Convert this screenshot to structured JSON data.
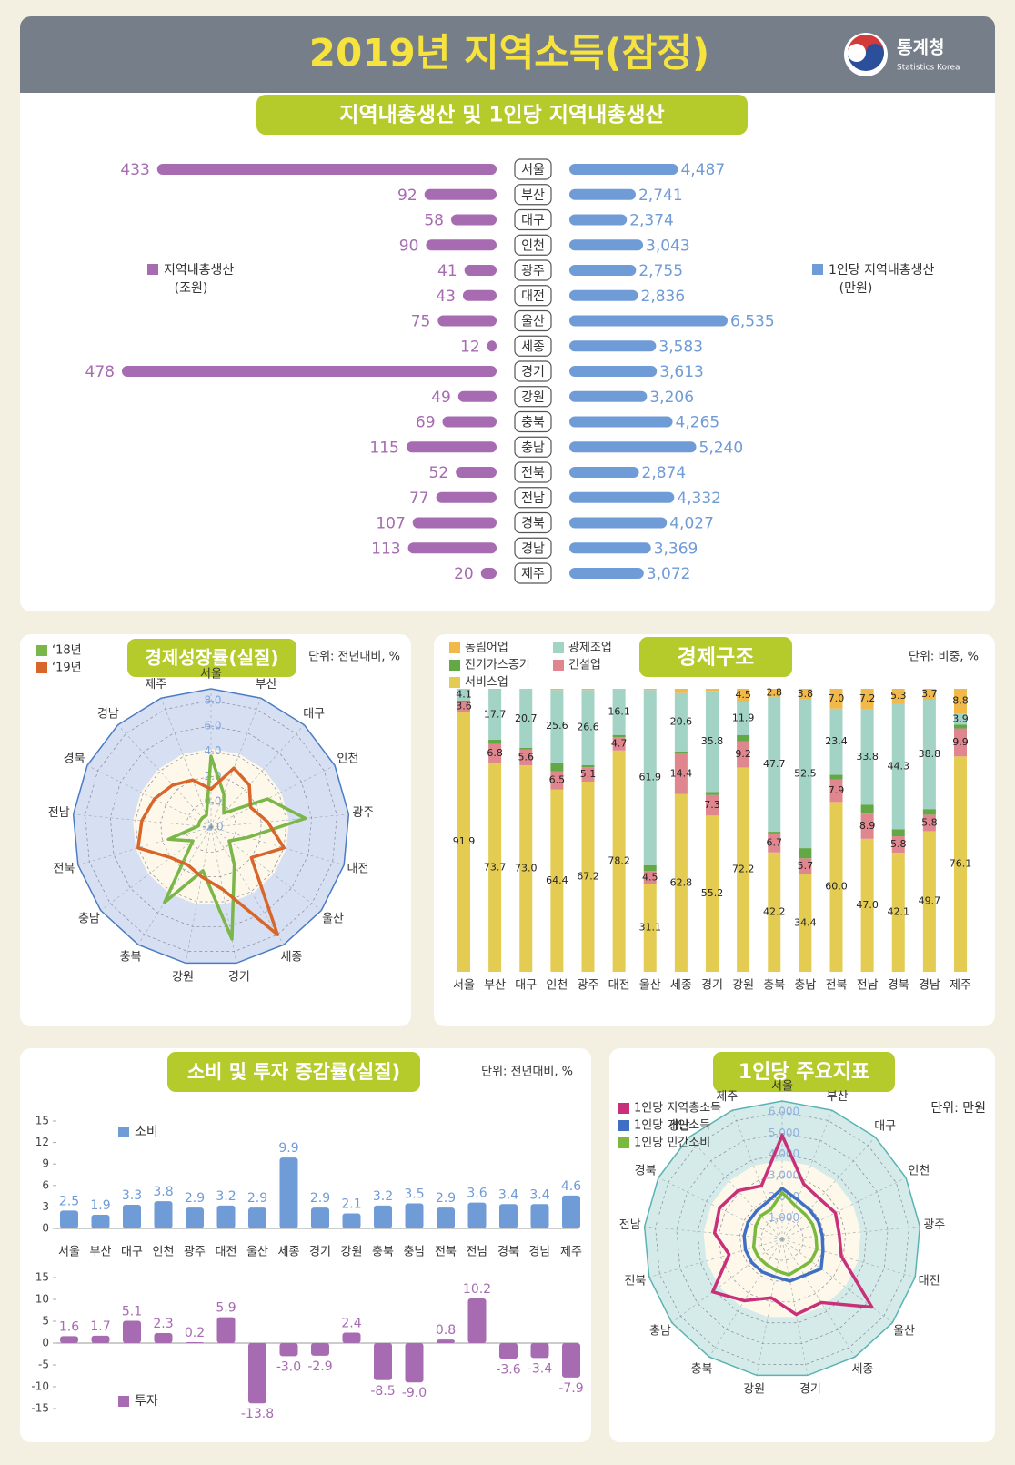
{
  "header": {
    "title": "2019년 지역소득(잠정)",
    "logo": "통계청",
    "logo_sub": "Statistics Korea"
  },
  "chart_data": [
    {
      "type": "butterfly_bar",
      "title": "지역내총생산 및 1인당 지역내총생산",
      "categories": [
        "서울",
        "부산",
        "대구",
        "인천",
        "광주",
        "대전",
        "울산",
        "세종",
        "경기",
        "강원",
        "충북",
        "충남",
        "전북",
        "전남",
        "경북",
        "경남",
        "제주"
      ],
      "series": [
        {
          "name": "지역내총생산",
          "unit": "(조원)",
          "color": "#a66bb1",
          "values": [
            433,
            92,
            58,
            90,
            41,
            43,
            75,
            12,
            478,
            49,
            69,
            115,
            52,
            77,
            107,
            113,
            20
          ]
        },
        {
          "name": "1인당 지역내총생산",
          "unit": "(만원)",
          "color": "#6f9bd6",
          "values": [
            4487,
            2741,
            2374,
            3043,
            2755,
            2836,
            6535,
            3583,
            3613,
            3206,
            4265,
            5240,
            2874,
            4332,
            4027,
            3369,
            3072
          ],
          "value_labels": [
            "4,487",
            "2,741",
            "2,374",
            "3,043",
            "2,755",
            "2,836",
            "6,535",
            "3,583",
            "3,613",
            "3,206",
            "4,265",
            "5,240",
            "2,874",
            "4,332",
            "4,027",
            "3,369",
            "3,072"
          ]
        }
      ]
    },
    {
      "type": "radar",
      "title": "경제성장률(실질)",
      "unit": "단위: 전년대비, %",
      "categories": [
        "서울",
        "부산",
        "대구",
        "인천",
        "광주",
        "대전",
        "울산",
        "세종",
        "경기",
        "강원",
        "충북",
        "충남",
        "전북",
        "전남",
        "경북",
        "경남",
        "제주"
      ],
      "rlim": [
        -2,
        8
      ],
      "rticks": [
        {
          "value": -2,
          "label": "-2.0"
        },
        {
          "value": 0,
          "label": "0.0"
        },
        {
          "value": 2,
          "label": "2.0"
        },
        {
          "value": 4,
          "label": "4.0"
        },
        {
          "value": 6,
          "label": "6.0"
        },
        {
          "value": 8,
          "label": "8.0"
        }
      ],
      "legend": "top-left",
      "series": [
        {
          "name": "‘18년",
          "color": "#7ab648",
          "values": [
            3.6,
            0.8,
            -0.5,
            3.0,
            5.5,
            1.0,
            -0.2,
            1.5,
            7.0,
            1.5,
            5.0,
            -0.2,
            1.5,
            -1.0,
            -1.0,
            -1.0,
            -1.0
          ]
        },
        {
          "name": "‘19년",
          "color": "#d8662a",
          "values": [
            1.0,
            3.0,
            2.5,
            1.5,
            2.5,
            4.0,
            2.0,
            8.0,
            3.0,
            2.0,
            1.5,
            2.0,
            4.0,
            3.5,
            3.0,
            2.5,
            2.0
          ]
        }
      ]
    },
    {
      "type": "stacked_bar",
      "title": "경제구조",
      "unit": "단위: 비중, %",
      "categories": [
        "서울",
        "부산",
        "대구",
        "인천",
        "광주",
        "대전",
        "울산",
        "세종",
        "경기",
        "강원",
        "충북",
        "충남",
        "전북",
        "전남",
        "경북",
        "경남",
        "제주"
      ],
      "ylim": [
        0,
        100
      ],
      "series": [
        {
          "name": "농림어업",
          "color": "#f0b94a",
          "values": [
            0.0,
            0.3,
            0.2,
            0.4,
            0.4,
            0.2,
            0.4,
            1.5,
            0.7,
            4.5,
            2.8,
            3.8,
            7.0,
            7.2,
            5.3,
            3.7,
            8.8
          ],
          "value_labels": [
            null,
            null,
            null,
            null,
            null,
            null,
            null,
            null,
            null,
            "4.5",
            "2.8",
            "3.8",
            "7.0",
            "7.2",
            "5.3",
            "3.7",
            "8.8"
          ]
        },
        {
          "name": "광제조업",
          "color": "#a3d3c5",
          "values": [
            4.1,
            17.7,
            20.7,
            25.6,
            26.6,
            16.1,
            61.9,
            20.6,
            35.8,
            11.9,
            47.7,
            52.5,
            23.4,
            33.8,
            44.3,
            38.8,
            3.9
          ],
          "value_labels": [
            "4.1",
            "17.7",
            "20.7",
            "25.6",
            "26.6",
            "16.1",
            "61.9",
            "20.6",
            "35.8",
            "11.9",
            "47.7",
            "52.5",
            "23.4",
            "33.8",
            "44.3",
            "38.8",
            "3.9"
          ]
        },
        {
          "name": "전기가스증기",
          "color": "#62a845",
          "values": [
            0.4,
            1.5,
            0.5,
            3.1,
            0.7,
            0.8,
            2.1,
            0.7,
            1.0,
            2.2,
            0.6,
            3.6,
            1.7,
            3.1,
            2.5,
            2.0,
            1.3
          ]
        },
        {
          "name": "건설업",
          "color": "#e0868f",
          "values": [
            3.6,
            6.8,
            5.6,
            6.5,
            5.1,
            4.7,
            4.5,
            14.4,
            7.3,
            9.2,
            6.7,
            5.7,
            7.9,
            8.9,
            5.8,
            5.8,
            9.9
          ],
          "value_labels": [
            "3.6",
            "6.8",
            "5.6",
            "6.5",
            "5.1",
            "4.7",
            "4.5",
            "14.4",
            "7.3",
            "9.2",
            "6.7",
            "5.7",
            "7.9",
            "8.9",
            "5.8",
            "5.8",
            "9.9"
          ]
        },
        {
          "name": "서비스업",
          "color": "#e4cc52",
          "values": [
            91.9,
            73.7,
            73.0,
            64.4,
            67.2,
            78.2,
            31.1,
            62.8,
            55.2,
            72.2,
            42.2,
            34.4,
            60.0,
            47.0,
            42.1,
            49.7,
            76.1
          ],
          "value_labels": [
            "91.9",
            "73.7",
            "73.0",
            "64.4",
            "67.2",
            "78.2",
            "31.1",
            "62.8",
            "55.2",
            "72.2",
            "42.2",
            "34.4",
            "60.0",
            "47.0",
            "42.1",
            "49.7",
            "76.1"
          ]
        }
      ]
    },
    {
      "type": "bar_panels",
      "title": "소비 및 투자 증감률(실질)",
      "unit": "단위: 전년대비, %",
      "categories": [
        "서울",
        "부산",
        "대구",
        "인천",
        "광주",
        "대전",
        "울산",
        "세종",
        "경기",
        "강원",
        "충북",
        "충남",
        "전북",
        "전남",
        "경북",
        "경남",
        "제주"
      ],
      "series": [
        {
          "name": "소비",
          "color": "#6f9bd6",
          "ylim": [
            0,
            15
          ],
          "yticks": [
            0,
            3,
            6,
            9,
            12,
            15
          ],
          "values": [
            2.5,
            1.9,
            3.3,
            3.8,
            2.9,
            3.2,
            2.9,
            9.9,
            2.9,
            2.1,
            3.2,
            3.5,
            2.9,
            3.6,
            3.4,
            3.4,
            4.6
          ]
        },
        {
          "name": "투자",
          "color": "#a66bb1",
          "ylim": [
            -15,
            15
          ],
          "yticks": [
            -15,
            -10,
            -5,
            0,
            5,
            10,
            15
          ],
          "values": [
            1.6,
            1.7,
            5.1,
            2.3,
            0.2,
            5.9,
            -13.8,
            -3.0,
            -2.9,
            2.4,
            -8.5,
            -9.0,
            0.8,
            10.2,
            -3.6,
            -3.4,
            -7.9
          ],
          "value_labels": [
            "1.6",
            "1.7",
            "5.1",
            "2.3",
            "0.2",
            "5.9",
            "-13.8",
            "-3.0",
            "-2.9",
            "2.4",
            "-8.5",
            "-9.0",
            "0.8",
            "10.2",
            "-3.6",
            "-3.4",
            "-7.9"
          ]
        }
      ]
    },
    {
      "type": "radar",
      "title": "1인당 주요지표",
      "unit": "단위: 만원",
      "categories": [
        "서울",
        "부산",
        "대구",
        "인천",
        "광주",
        "대전",
        "울산",
        "세종",
        "경기",
        "강원",
        "충북",
        "충남",
        "전북",
        "전남",
        "경북",
        "경남",
        "제주"
      ],
      "rlim": [
        0,
        6000
      ],
      "rticks": [
        {
          "value": 1000,
          "label": "1,000"
        },
        {
          "value": 2000,
          "label": "2,000"
        },
        {
          "value": 3000,
          "label": "3,000"
        },
        {
          "value": 4000,
          "label": "4,000"
        },
        {
          "value": 5000,
          "label": "5,000"
        },
        {
          "value": 6000,
          "label": "6,000"
        }
      ],
      "legend": "top-left",
      "series": [
        {
          "name": "1인당 지역총소득",
          "color": "#c8317a",
          "values": [
            4900,
            2800,
            2600,
            2800,
            2700,
            2900,
            5300,
            3500,
            3600,
            2800,
            3400,
            4100,
            2600,
            3200,
            3300,
            3100,
            2700
          ]
        },
        {
          "name": "1인당 개인소득",
          "color": "#3f6fc4",
          "values": [
            2400,
            2000,
            1900,
            1900,
            1900,
            2000,
            2300,
            2000,
            2000,
            1800,
            1800,
            1800,
            1800,
            1800,
            1800,
            1800,
            1900
          ]
        },
        {
          "name": "1인당 민간소비",
          "color": "#7bb83e",
          "values": [
            2200,
            1700,
            1600,
            1600,
            1600,
            1700,
            1700,
            1600,
            1700,
            1500,
            1400,
            1400,
            1400,
            1300,
            1400,
            1500,
            1500
          ]
        }
      ]
    }
  ]
}
